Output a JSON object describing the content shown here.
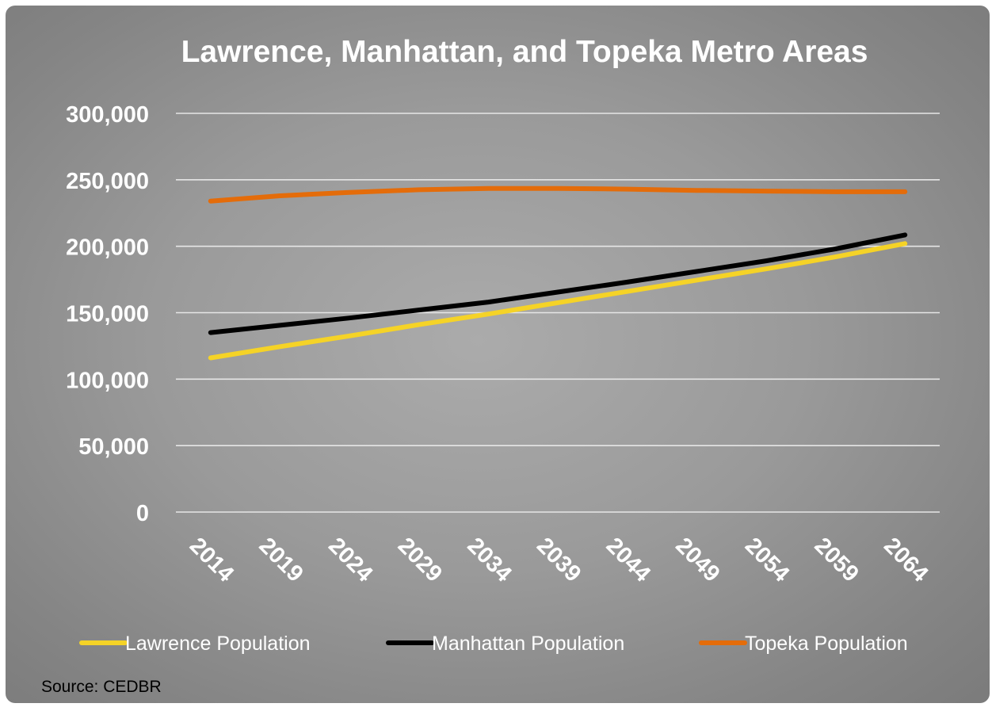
{
  "chart_data": {
    "type": "line",
    "title": "Lawrence, Manhattan, and Topeka Metro Areas",
    "xlabel": "",
    "ylabel": "",
    "categories": [
      "2014",
      "2019",
      "2024",
      "2029",
      "2034",
      "2039",
      "2044",
      "2049",
      "2054",
      "2059",
      "2064"
    ],
    "ylim": [
      0,
      300000
    ],
    "yticks": [
      0,
      50000,
      100000,
      150000,
      200000,
      250000,
      300000
    ],
    "ytick_labels": [
      "0",
      "50,000",
      "100,000",
      "150,000",
      "200,000",
      "250,000",
      "300,000"
    ],
    "grid": true,
    "legend_position": "bottom",
    "series": [
      {
        "name": "Lawrence Population",
        "color": "#f5d327",
        "values": [
          116000,
          124500,
          132500,
          141000,
          149000,
          157500,
          166000,
          174500,
          183000,
          192000,
          202000
        ]
      },
      {
        "name": "Manhattan Population",
        "color": "#000000",
        "values": [
          135000,
          140500,
          146000,
          152000,
          158000,
          165500,
          173000,
          181000,
          189000,
          198000,
          208500
        ]
      },
      {
        "name": "Topeka Population",
        "color": "#e46c0a",
        "values": [
          234000,
          238000,
          240500,
          242500,
          243500,
          243500,
          243000,
          242000,
          241500,
          241000,
          241000
        ]
      }
    ]
  },
  "source": "Source: CEDBR"
}
